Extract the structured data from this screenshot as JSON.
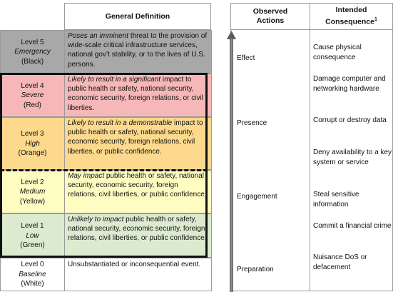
{
  "left_table": {
    "header": "General Definition",
    "rows": [
      {
        "level": "Level 5",
        "severity": "Emergency",
        "color": "(Black)",
        "def_em": "Poses an imminent",
        "def_rest": " threat to the provision of wide-scale critical infrastructure services, national gov’t stability, or to the lives of U.S. persons.",
        "bg": "#a8a8a8"
      },
      {
        "level": "Level 4",
        "severity": "Severe",
        "color": "(Red)",
        "def_em": "Likely to result in a significant",
        "def_rest": " impact to public health or safety, national security, economic security, foreign relations, or civil liberties.",
        "bg": "#f6b7b8"
      },
      {
        "level": "Level 3",
        "severity": "High",
        "color": "(Orange)",
        "def_em": "Likely to result in a demonstrable",
        "def_rest": " impact to public health or safety, national security, economic security, foreign relations, civil liberties, or public confidence.",
        "bg": "#fcd98c"
      },
      {
        "level": "Level 2",
        "severity": "Medium",
        "color": "(Yellow)",
        "def_em": "May impact",
        "def_rest": " public health or safety, national security, economic security, foreign relations, civil liberties, or public confidence.",
        "bg": "#fffcc2"
      },
      {
        "level": "Level 1",
        "severity": "Low",
        "color": "(Green)",
        "def_em": "Unlikely to impact",
        "def_rest": " public health or safety, national security, economic security, foreign relations, civil liberties, or public confidence.",
        "bg": "#dcebd0"
      },
      {
        "level": "Level 0",
        "severity": "Baseline",
        "color": "(White)",
        "def_em": "",
        "def_rest": "Unsubstantiated or inconsequential event.",
        "bg": "#ffffff"
      }
    ]
  },
  "right_table": {
    "header_actions": "Observed Actions",
    "header_consequence": "Intended Consequence",
    "header_consequence_sup": "1",
    "actions": [
      "Effect",
      "Presence",
      "Engagement",
      "Preparation"
    ],
    "consequences": [
      "Cause physical consequence",
      "Damage computer and networking hardware",
      "Corrupt or destroy data",
      "Deny availability to a key system or service",
      "Steal sensitive information",
      "Commit a financial crime",
      "Nuisance DoS or defacement"
    ]
  }
}
